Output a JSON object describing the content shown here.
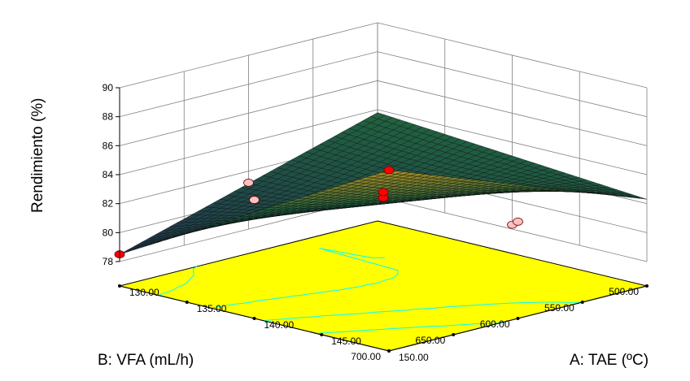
{
  "chart_data": {
    "type": "surface3d",
    "title": "",
    "zlabel": "Rendimiento (%)",
    "xlabel": "A: TAE (ºC)",
    "ylabel": "B: VFA (mL/h)",
    "x_ticks": [
      "130.00",
      "135.00",
      "140.00",
      "145.00",
      "150.00"
    ],
    "y_ticks": [
      "500.00",
      "550.00",
      "600.00",
      "650.00",
      "700.00"
    ],
    "z_ticks": [
      "78",
      "80",
      "82",
      "84",
      "86",
      "88",
      "90"
    ],
    "xlim": [
      130,
      150
    ],
    "ylim": [
      500,
      700
    ],
    "zlim": [
      78,
      90
    ],
    "surface_corners": [
      {
        "x": 130,
        "y": 700,
        "z": 78.5
      },
      {
        "x": 150,
        "y": 700,
        "z": 88.8
      },
      {
        "x": 130,
        "y": 500,
        "z": 83.8
      },
      {
        "x": 150,
        "y": 500,
        "z": 82.3
      }
    ],
    "design_points": [
      {
        "x": 130,
        "y": 700,
        "z": 78.5,
        "above_surface": true
      },
      {
        "x": 150,
        "y": 700,
        "z": 88.8,
        "above_surface": true
      },
      {
        "x": 140,
        "y": 600,
        "z": 82.4,
        "above_surface": true
      },
      {
        "x": 140,
        "y": 600,
        "z": 82.8,
        "above_surface": true
      },
      {
        "x": 140,
        "y": 700,
        "z": 84.5,
        "above_surface": false
      },
      {
        "x": 130,
        "y": 600,
        "z": 81.2,
        "above_surface": false
      },
      {
        "x": 140,
        "y": 500,
        "z": 78.3,
        "above_surface": false
      },
      {
        "x": 150,
        "y": 600,
        "z": 83.0,
        "above_surface": false
      }
    ],
    "colors": {
      "floor": "#ffff00",
      "contour": "#00ffff",
      "surface_low": "#203050",
      "surface_mid": "#206040",
      "surface_high": "#b09020",
      "point_above": "#ff0000",
      "point_below": "#ffc0c0",
      "grid": "#808080"
    },
    "grid": true,
    "legend": "none"
  }
}
